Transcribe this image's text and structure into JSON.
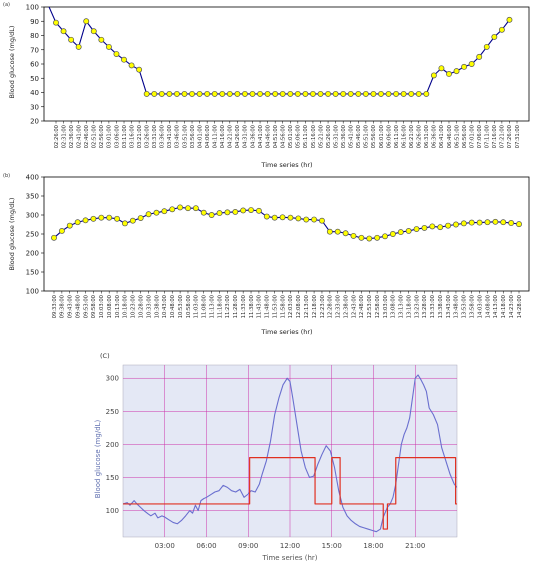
{
  "chart_data": [
    {
      "panel_label": "(a)",
      "type": "line",
      "xlabel": "Time series (hr)",
      "ylabel": "Blood glucose (mg/dL)",
      "ylim": [
        20,
        100
      ],
      "y_ticks": [
        "20",
        "30",
        "40",
        "50",
        "60",
        "70",
        "80",
        "90",
        "100"
      ],
      "grid": false,
      "line_color": "#00008b",
      "marker_color": "#ffff00",
      "x": [
        "02:26:00",
        "02:31:00",
        "02:36:00",
        "02:41:00",
        "02:46:00",
        "02:51:00",
        "02:56:00",
        "03:01:00",
        "03:06:00",
        "03:11:00",
        "03:16:00",
        "03:21:00",
        "03:26:00",
        "03:31:00",
        "03:36:00",
        "03:41:00",
        "03:46:00",
        "03:51:00",
        "03:56:00",
        "04:01:00",
        "04:06:00",
        "04:11:00",
        "04:16:00",
        "04:21:00",
        "04:26:00",
        "04:31:00",
        "04:36:00",
        "04:41:00",
        "04:46:00",
        "04:51:00",
        "04:56:00",
        "05:01:00",
        "05:06:00",
        "05:11:00",
        "05:16:00",
        "05:21:00",
        "05:26:00",
        "05:31:00",
        "05:36:00",
        "05:41:00",
        "05:46:00",
        "05:51:00",
        "05:56:00",
        "06:01:00",
        "06:06:00",
        "06:11:00",
        "06:16:00",
        "06:21:00",
        "06:26:00",
        "06:31:00",
        "06:36:00",
        "06:41:00",
        "06:46:00",
        "06:51:00",
        "06:56:00",
        "07:01:00",
        "07:06:00",
        "07:11:00",
        "07:16:00",
        "07:21:00",
        "07:26:00",
        "07:31:00"
      ],
      "x_tick_labels": [
        "02:26:00",
        "02:31:00",
        "02:36:00",
        "02:41:00",
        "02:46:00",
        "02:51:00",
        "02:56:00",
        "03:01:00",
        "03:06:00",
        "03:11:00",
        "03:16:00",
        "03:21:00",
        "03:26:00",
        "03:31:00",
        "03:36:00",
        "03:41:00",
        "03:46:00",
        "03:51:00",
        "03:56:00",
        "04:01:00",
        "04:06:00",
        "04:11:00",
        "04:16:00",
        "04:21:00",
        "04:26:00",
        "04:31:00",
        "04:36:00",
        "04:41:00",
        "04:46:00",
        "04:51:00",
        "04:56:00",
        "05:01:00",
        "05:06:00",
        "05:11:00",
        "05:16:00",
        "05:21:00",
        "05:26:00",
        "05:31:00",
        "05:36:00",
        "05:41:00",
        "05:46:00",
        "05:51:00",
        "05:56:00",
        "06:01:00",
        "06:06:00",
        "06:11:00",
        "06:16:00",
        "06:21:00",
        "06:26:00",
        "06:31:00",
        "06:36:00",
        "06:41:00",
        "06:46:00",
        "06:51:00",
        "06:56:00",
        "07:01:00",
        "07:06:00",
        "07:11:00",
        "07:16:00",
        "07:21:00",
        "07:26:00",
        "07:31:00"
      ],
      "series": [
        {
          "values": [
            101,
            89,
            83,
            77,
            72,
            90,
            83,
            77,
            72,
            67,
            63,
            59,
            56,
            39,
            39,
            39,
            39,
            39,
            39,
            39,
            39,
            39,
            39,
            39,
            39,
            39,
            39,
            39,
            39,
            39,
            39,
            39,
            39,
            39,
            39,
            39,
            39,
            39,
            39,
            39,
            39,
            39,
            39,
            39,
            39,
            39,
            39,
            39,
            39,
            39,
            39,
            52,
            57,
            53,
            55,
            58,
            60,
            65,
            72,
            79,
            84,
            91
          ],
          "marker_values": [
            89,
            83,
            77,
            72,
            90,
            83,
            77,
            72,
            67,
            63,
            59,
            56,
            39,
            39,
            39,
            39,
            39,
            39,
            39,
            39,
            39,
            39,
            39,
            39,
            39,
            39,
            39,
            39,
            39,
            39,
            39,
            39,
            39,
            39,
            39,
            39,
            39,
            39,
            39,
            39,
            39,
            39,
            39,
            39,
            39,
            39,
            39,
            39,
            39,
            39,
            52,
            57,
            53,
            55,
            58,
            60,
            65,
            72,
            79,
            84,
            91
          ]
        }
      ]
    },
    {
      "panel_label": "(b)",
      "type": "line",
      "xlabel": "Time series (hr)",
      "ylabel": "Blood glucose (mg/dL)",
      "ylim": [
        100,
        400
      ],
      "y_ticks": [
        "100",
        "150",
        "200",
        "250",
        "300",
        "350",
        "400"
      ],
      "grid": false,
      "line_color": "#00008b",
      "marker_color": "#ffff00",
      "x_tick_labels": [
        "09:33:00",
        "09:38:00",
        "09:43:00",
        "09:48:00",
        "09:53:00",
        "09:58:00",
        "10:03:00",
        "10:08:00",
        "10:13:00",
        "10:18:00",
        "10:23:00",
        "10:28:00",
        "10:33:00",
        "10:38:00",
        "10:43:00",
        "10:48:00",
        "10:53:00",
        "10:58:00",
        "11:03:00",
        "11:08:00",
        "11:13:00",
        "11:18:00",
        "11:23:00",
        "11:28:00",
        "11:33:00",
        "11:38:00",
        "11:43:00",
        "11:48:00",
        "11:53:00",
        "11:58:00",
        "12:03:00",
        "12:08:00",
        "12:13:00",
        "12:18:00",
        "12:23:00",
        "12:28:00",
        "12:33:00",
        "12:38:00",
        "12:43:00",
        "12:48:00",
        "12:53:00",
        "12:58:00",
        "13:03:00",
        "13:08:00",
        "13:13:00",
        "13:18:00",
        "13:23:00",
        "13:28:00",
        "13:33:00",
        "13:38:00",
        "13:43:00",
        "13:48:00",
        "13:53:00",
        "13:58:00",
        "14:03:00",
        "14:08:00",
        "14:13:00",
        "14:18:00",
        "14:23:00",
        "14:28:00"
      ],
      "series": [
        {
          "values": [
            240,
            258,
            272,
            281,
            286,
            290,
            293,
            293,
            290,
            278,
            285,
            292,
            302,
            306,
            310,
            315,
            320,
            318,
            318,
            306,
            300,
            305,
            307,
            308,
            312,
            313,
            311,
            296,
            293,
            294,
            293,
            291,
            288,
            288,
            285,
            256,
            256,
            252,
            245,
            240,
            238,
            240,
            244,
            250,
            255,
            258,
            263,
            266,
            270,
            268,
            272,
            275,
            278,
            280,
            280,
            281,
            282,
            281,
            279,
            276
          ]
        }
      ]
    },
    {
      "panel_label": "(C)",
      "type": "line",
      "xlabel": "Time series (hr)",
      "ylabel": "Blood glucose (mg/dL)",
      "xlim": [
        0,
        24
      ],
      "ylim": [
        60,
        320
      ],
      "x_ticks": [
        3,
        6,
        9,
        12,
        15,
        18,
        21
      ],
      "x_tick_labels": [
        "03:00",
        "06:00",
        "09:00",
        "12:00",
        "15:00",
        "18:00",
        "21:00"
      ],
      "y_ticks": [
        100,
        150,
        200,
        250,
        300
      ],
      "y_tick_labels": [
        "100",
        "150",
        "200",
        "250",
        "300"
      ],
      "grid": true,
      "background": "#e4e8f5",
      "grid_color": "#cc33aa",
      "series": [
        {
          "color": "#6a6fcf",
          "x": [
            0.0,
            0.3,
            0.5,
            0.8,
            1.0,
            1.3,
            1.5,
            1.8,
            2.0,
            2.3,
            2.5,
            2.8,
            3.0,
            3.3,
            3.6,
            3.9,
            4.2,
            4.5,
            4.8,
            5.0,
            5.2,
            5.4,
            5.6,
            5.8,
            6.0,
            6.3,
            6.6,
            6.9,
            7.2,
            7.5,
            7.8,
            8.1,
            8.4,
            8.7,
            9.0,
            9.2,
            9.5,
            9.8,
            10.0,
            10.3,
            10.6,
            10.9,
            11.2,
            11.5,
            11.8,
            12.0,
            12.2,
            12.5,
            12.8,
            13.1,
            13.4,
            13.7,
            14.0,
            14.3,
            14.6,
            14.9,
            15.2,
            15.5,
            15.8,
            16.1,
            16.4,
            16.7,
            17.0,
            17.3,
            17.6,
            17.9,
            18.2,
            18.5,
            18.7,
            19.0,
            19.2,
            19.4,
            19.6,
            19.8,
            20.0,
            20.2,
            20.4,
            20.6,
            20.8,
            21.0,
            21.2,
            21.4,
            21.6,
            21.8,
            22.0,
            22.3,
            22.6,
            22.9,
            23.2,
            23.5,
            23.8,
            24.0
          ],
          "values": [
            110,
            112,
            108,
            115,
            110,
            104,
            100,
            95,
            92,
            96,
            89,
            92,
            90,
            86,
            82,
            80,
            85,
            92,
            100,
            96,
            108,
            100,
            115,
            118,
            120,
            124,
            128,
            130,
            138,
            135,
            130,
            128,
            132,
            120,
            125,
            130,
            128,
            140,
            155,
            175,
            205,
            245,
            270,
            290,
            300,
            295,
            270,
            230,
            190,
            165,
            150,
            152,
            170,
            185,
            198,
            190,
            165,
            130,
            105,
            92,
            85,
            80,
            76,
            74,
            72,
            70,
            68,
            72,
            90,
            105,
            110,
            120,
            140,
            170,
            200,
            215,
            225,
            240,
            270,
            300,
            305,
            298,
            290,
            280,
            255,
            245,
            230,
            195,
            175,
            155,
            140,
            135
          ]
        },
        {
          "color": "#e03020",
          "x": [
            0.0,
            9.1,
            9.1,
            13.8,
            13.8,
            15.0,
            15.0,
            15.6,
            15.6,
            18.7,
            18.7,
            19.0,
            19.0,
            19.6,
            19.6,
            23.9,
            23.9,
            24.0
          ],
          "values": [
            110,
            110,
            180,
            180,
            110,
            110,
            180,
            180,
            110,
            110,
            72,
            72,
            110,
            110,
            180,
            180,
            110,
            110
          ]
        }
      ]
    }
  ]
}
